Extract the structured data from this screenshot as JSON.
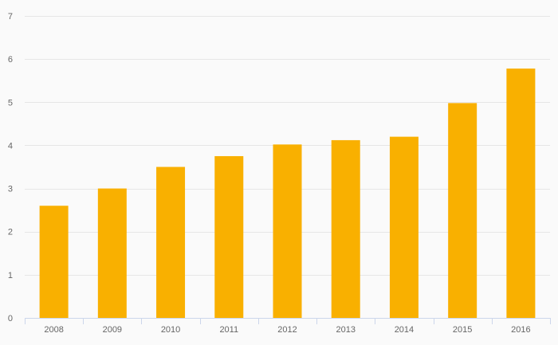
{
  "chart_data": {
    "type": "bar",
    "categories": [
      "2008",
      "2009",
      "2010",
      "2011",
      "2012",
      "2013",
      "2014",
      "2015",
      "2016"
    ],
    "series": [
      {
        "values": [
          2.6,
          3.0,
          3.5,
          3.75,
          4.02,
          4.12,
          4.2,
          4.98,
          5.78
        ]
      }
    ],
    "y_ticks": [
      "0",
      "1",
      "2",
      "3",
      "4",
      "5",
      "6",
      "7"
    ],
    "ylim": [
      0,
      7
    ],
    "title": "",
    "xlabel": "",
    "ylabel": "",
    "grid": true,
    "legend": "none",
    "colors": {
      "bar": "#f9b000",
      "background": "#fafafa",
      "grid": "#e6e6e6",
      "axis": "#ccd6eb",
      "tick_text": "#666666"
    }
  }
}
